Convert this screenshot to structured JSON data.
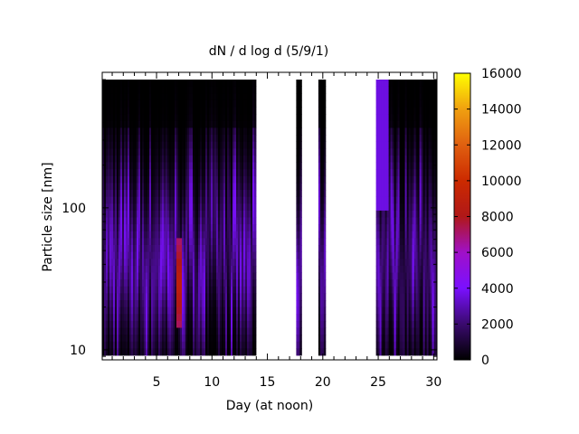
{
  "chart_data": {
    "type": "heatmap",
    "title": "dN / d log d (5/9/1)",
    "xlabel": "Day (at noon)",
    "ylabel": "Particle size [nm]",
    "xlim": [
      0.1,
      30.3
    ],
    "ylim": [
      8.5,
      900
    ],
    "yscale": "log",
    "x_ticks": [
      5,
      10,
      15,
      20,
      25,
      30
    ],
    "x_minor_step": 1,
    "y_ticks": [
      10,
      100
    ],
    "colorbar": {
      "range": [
        0,
        16000
      ],
      "ticks": [
        0,
        2000,
        4000,
        6000,
        8000,
        10000,
        12000,
        14000,
        16000
      ],
      "palette": "gnuplot (black-purple-red-orange-yellow)",
      "stops": [
        "#000000",
        "#3a0a6e",
        "#7a10ff",
        "#a010c8",
        "#b01818",
        "#cc2a00",
        "#e06010",
        "#f0a010",
        "#ffff00"
      ]
    },
    "data_segments": [
      {
        "x_start": 0.1,
        "x_end": 13.9,
        "description": "continuous data; mostly 500-4000, peak ~9000 near day 7 at 20-60 nm"
      },
      {
        "x_start": 17.6,
        "x_end": 18.0,
        "description": "narrow column, 500-3000"
      },
      {
        "x_start": 19.6,
        "x_end": 20.1,
        "description": "narrow column, ~1500-4000"
      },
      {
        "x_start": 24.8,
        "x_end": 30.3,
        "description": "continuous data; 500-4000, bright at day 25-26 above 100 nm"
      }
    ],
    "missing_ranges": [
      [
        13.9,
        17.6
      ],
      [
        18.0,
        19.6
      ],
      [
        20.1,
        24.8
      ]
    ],
    "max_value_estimate": 9000,
    "max_location": {
      "day": 7,
      "size_nm_range": [
        15,
        60
      ]
    }
  }
}
